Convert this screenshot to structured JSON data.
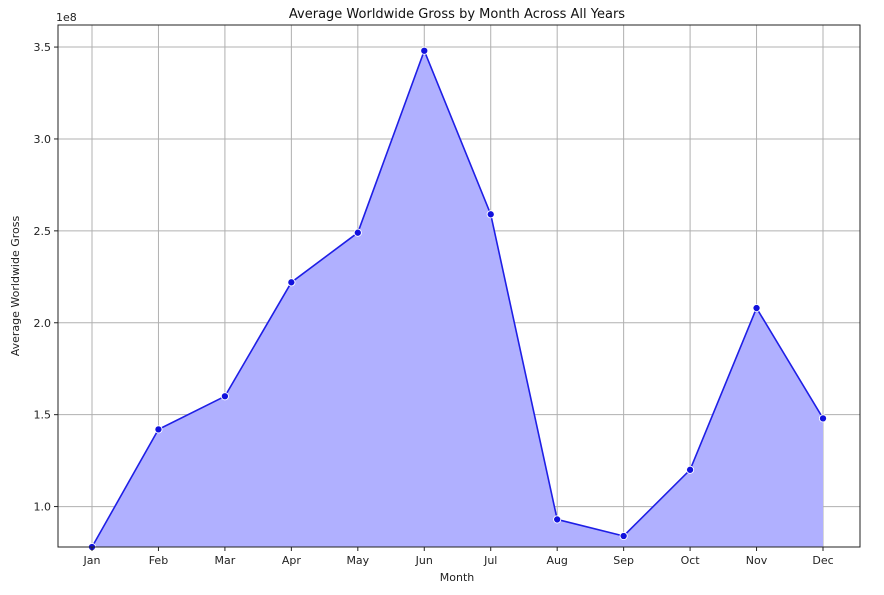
{
  "chart_data": {
    "type": "area",
    "title": "Average Worldwide Gross by Month Across All Years",
    "xlabel": "Month",
    "ylabel": "Average Worldwide Gross",
    "y_offset_label": "1e8",
    "categories": [
      "Jan",
      "Feb",
      "Mar",
      "Apr",
      "May",
      "Jun",
      "Jul",
      "Aug",
      "Sep",
      "Oct",
      "Nov",
      "Dec"
    ],
    "series": [
      {
        "values": [
          78000000,
          142000000,
          160000000,
          222000000,
          249000000,
          348000000,
          259000000,
          93000000,
          84000000,
          120000000,
          208000000,
          148000000
        ]
      }
    ],
    "ylim": [
      78000000,
      362000000
    ],
    "yticks": [
      100000000,
      150000000,
      200000000,
      250000000,
      300000000,
      350000000
    ],
    "ytick_labels": [
      "1.0",
      "1.5",
      "2.0",
      "2.5",
      "3.0",
      "3.5"
    ],
    "grid": true,
    "colors": {
      "line": "#1f1fe6",
      "fill": "#b0b0ff",
      "marker": "#1111dd",
      "marker_edge": "#ffffff"
    }
  }
}
